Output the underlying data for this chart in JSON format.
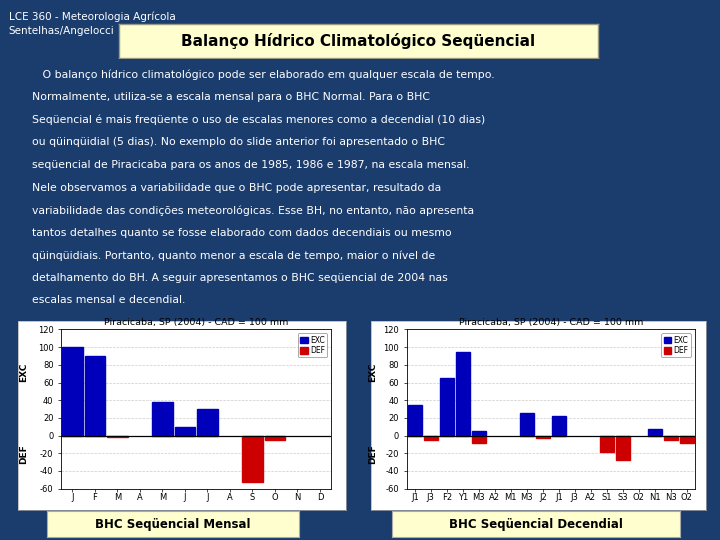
{
  "bg_color": "#1b3d6e",
  "header_text_line1": "LCE 360 - Meteorologia Agrícola",
  "header_text_line2": "Sentelhas/Angelocci",
  "title_box_text": "Balanço Hídrico Climatológico Seqüencial",
  "body_lines": [
    "   O balanço hídrico climatológico pode ser elaborado em qualquer escala de tempo.",
    "Normalmente, utiliza-se a escala mensal para o BHC Normal. Para o BHC",
    "Seqüencial é mais freqüente o uso de escalas menores como a decendial (10 dias)",
    "ou qüinqüidial (5 dias). No exemplo do slide anterior foi apresentado o BHC",
    "seqüencial de Piracicaba para os anos de 1985, 1986 e 1987, na escala mensal.",
    "Nele observamos a variabilidade que o BHC pode apresentar, resultado da",
    "variabilidade das condições meteorológicas. Esse BH, no entanto, não apresenta",
    "tantos detalhes quanto se fosse elaborado com dados decendiais ou mesmo",
    "qüinqüidiais. Portanto, quanto menor a escala de tempo, maior o nível de",
    "detalhamento do BH. A seguir apresentamos o BHC seqüencial de 2004 nas",
    "escalas mensal e decendial."
  ],
  "chart1_title": "Piracicaba, SP (2004) - CAD = 100 mm",
  "chart1_xlabel": [
    "J",
    "F",
    "M",
    "A",
    "M",
    "J",
    "J",
    "A",
    "S",
    "O",
    "N",
    "D"
  ],
  "chart1_exc": [
    100,
    90,
    0,
    0,
    38,
    10,
    30,
    0,
    0,
    0,
    0,
    0
  ],
  "chart1_def": [
    0,
    0,
    -2,
    0,
    0,
    0,
    0,
    0,
    -52,
    -5,
    0,
    0
  ],
  "chart1_ylim": [
    -60,
    120
  ],
  "chart1_yticks": [
    -60,
    -40,
    -20,
    0,
    20,
    40,
    60,
    80,
    100,
    120
  ],
  "chart1_label": "BHC Seqüencial Mensal",
  "chart2_title": "Piracicaba, SP (2004) - CAD = 100 mm",
  "chart2_xlabel": [
    "J1",
    "J3",
    "F2",
    "Y1",
    "M3",
    "A2",
    "M1",
    "M3",
    "J2",
    "J1",
    "J3",
    "A2",
    "S1",
    "S3",
    "O2",
    "N1",
    "N3",
    "O2"
  ],
  "chart2_exc": [
    35,
    0,
    65,
    95,
    5,
    0,
    0,
    25,
    0,
    22,
    0,
    0,
    0,
    0,
    0,
    8,
    0,
    0
  ],
  "chart2_def": [
    0,
    -5,
    0,
    0,
    -8,
    0,
    0,
    0,
    -3,
    0,
    0,
    0,
    -18,
    -28,
    0,
    0,
    -5,
    -8
  ],
  "chart2_ylim": [
    -60,
    120
  ],
  "chart2_yticks": [
    -60,
    -40,
    -20,
    0,
    20,
    40,
    60,
    80,
    100,
    120
  ],
  "chart2_label": "BHC Seqüencial Decendial",
  "exc_color": "#0000bb",
  "def_color": "#cc0000",
  "chart_bg": "#ffffff",
  "label_box_color": "#fefece",
  "panel_bg": "#f0f0f0"
}
